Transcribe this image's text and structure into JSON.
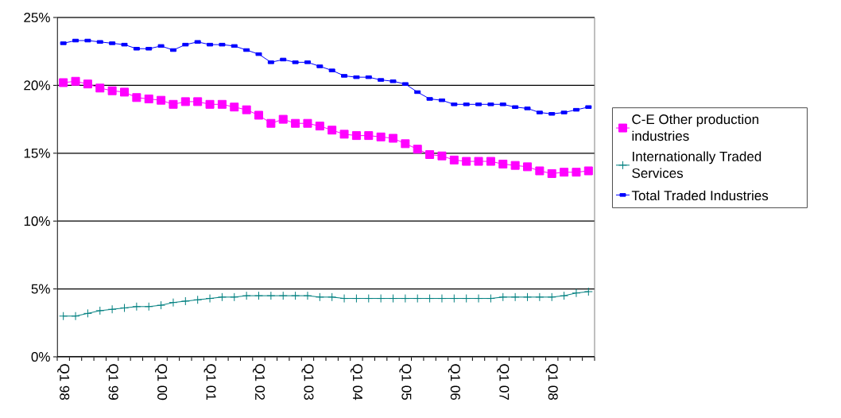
{
  "chart_data": {
    "type": "line",
    "categories": [
      "Q1 98",
      null,
      null,
      null,
      "Q1 99",
      null,
      null,
      null,
      "Q1 00",
      null,
      null,
      null,
      "Q1 01",
      null,
      null,
      null,
      "Q1 02",
      null,
      null,
      null,
      "Q1 03",
      null,
      null,
      null,
      "Q1 04",
      null,
      null,
      null,
      "Q1 05",
      null,
      null,
      null,
      "Q1 06",
      null,
      null,
      null,
      "Q1 07",
      null,
      null,
      null,
      "Q1 08",
      null,
      null,
      null
    ],
    "ylim": [
      0,
      25
    ],
    "yticks": [
      {
        "value": 0,
        "label": "0%"
      },
      {
        "value": 5,
        "label": "5%"
      },
      {
        "value": 10,
        "label": "10%"
      },
      {
        "value": 15,
        "label": "15%"
      },
      {
        "value": 20,
        "label": "20%"
      },
      {
        "value": 25,
        "label": "25%"
      }
    ],
    "grid": "y",
    "legend": "right",
    "series": [
      {
        "name": "C-E Other production industries",
        "color": "#ff00ff",
        "marker": "square",
        "values": [
          20.2,
          20.3,
          20.1,
          19.8,
          19.6,
          19.5,
          19.1,
          19.0,
          18.9,
          18.6,
          18.8,
          18.8,
          18.6,
          18.6,
          18.4,
          18.2,
          17.8,
          17.2,
          17.5,
          17.2,
          17.2,
          17.0,
          16.7,
          16.4,
          16.3,
          16.3,
          16.2,
          16.1,
          15.7,
          15.3,
          14.9,
          14.8,
          14.5,
          14.4,
          14.4,
          14.4,
          14.2,
          14.1,
          14.0,
          13.7,
          13.5,
          13.6,
          13.6,
          13.7
        ]
      },
      {
        "name": "Internationally Traded Services",
        "color": "#008080",
        "marker": "cross",
        "values": [
          3.0,
          3.0,
          3.2,
          3.4,
          3.5,
          3.6,
          3.7,
          3.7,
          3.8,
          4.0,
          4.1,
          4.2,
          4.3,
          4.4,
          4.4,
          4.5,
          4.5,
          4.5,
          4.5,
          4.5,
          4.5,
          4.4,
          4.4,
          4.3,
          4.3,
          4.3,
          4.3,
          4.3,
          4.3,
          4.3,
          4.3,
          4.3,
          4.3,
          4.3,
          4.3,
          4.3,
          4.4,
          4.4,
          4.4,
          4.4,
          4.4,
          4.5,
          4.7,
          4.8
        ]
      },
      {
        "name": "Total Traded Industries",
        "color": "#0000ff",
        "marker": "square",
        "values": [
          23.1,
          23.3,
          23.3,
          23.2,
          23.1,
          23.0,
          22.7,
          22.7,
          22.9,
          22.6,
          23.0,
          23.2,
          23.0,
          23.0,
          22.9,
          22.6,
          22.3,
          21.7,
          21.9,
          21.7,
          21.7,
          21.4,
          21.1,
          20.7,
          20.6,
          20.6,
          20.4,
          20.3,
          20.1,
          19.5,
          19.0,
          18.9,
          18.6,
          18.6,
          18.6,
          18.6,
          18.6,
          18.4,
          18.3,
          18.0,
          17.9,
          18.0,
          18.2,
          18.4
        ]
      }
    ]
  }
}
